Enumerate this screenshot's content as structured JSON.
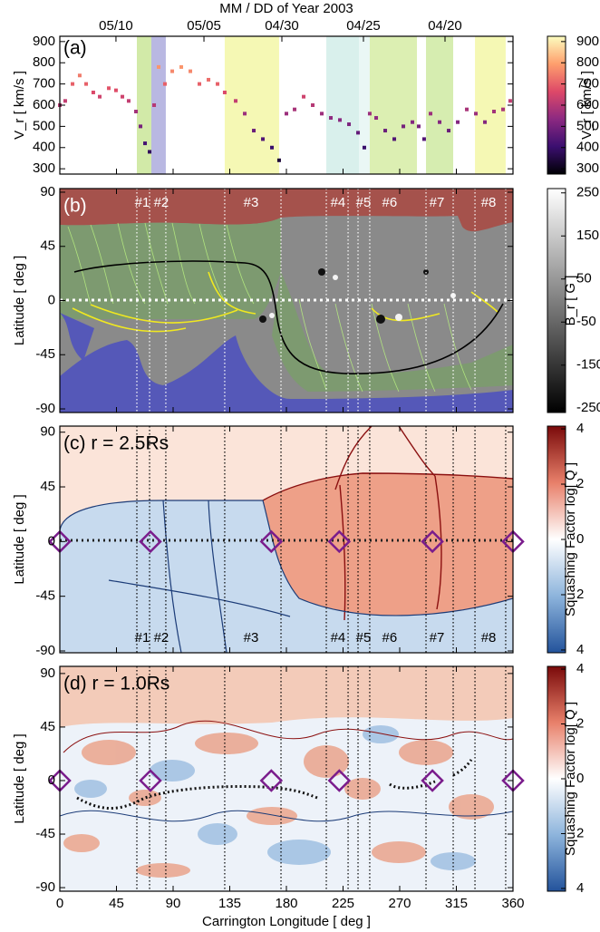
{
  "chart_data": [
    {
      "type": "scatter",
      "label": "(a)",
      "x2label": "MM / DD of Year 2003",
      "x2ticks": [
        {
          "value": 44.6,
          "label": "05/10"
        },
        {
          "value": 114.5,
          "label": "05/05"
        },
        {
          "value": 176.4,
          "label": "04/30"
        },
        {
          "value": 241.2,
          "label": "04/25"
        },
        {
          "value": 306,
          "label": "04/20"
        }
      ],
      "xlim": [
        0,
        360
      ],
      "ylim": [
        275,
        925
      ],
      "yticks": [
        300,
        400,
        500,
        600,
        700,
        800,
        900
      ],
      "ylabel": "V_r [ km/s ]",
      "bands": [
        {
          "xlim": [
            61.2,
            72.7
          ],
          "color": "#d2eaa8"
        },
        {
          "xlim": [
            72.7,
            84.2
          ],
          "color": "#b9b8e2"
        },
        {
          "xlim": [
            131,
            174.2
          ],
          "color": "#f5f8b4"
        },
        {
          "xlim": [
            211.7,
            237.6
          ],
          "color": "#d9f0ec"
        },
        {
          "xlim": [
            237.6,
            246.2
          ],
          "color": "#eaf7f5"
        },
        {
          "xlim": [
            246.2,
            283.7
          ],
          "color": "#dcefb2"
        },
        {
          "xlim": [
            290.9,
            312.5
          ],
          "color": "#d6edb0"
        },
        {
          "xlim": [
            329.8,
            354.2
          ],
          "color": "#f5f8b4"
        }
      ],
      "series": [
        {
          "x": [
            0,
            4.3,
            10.1,
            15.8,
            20.9,
            26.6,
            31.7,
            38.9,
            44.6,
            49.7,
            54.7,
            60.5,
            64.1,
            67.7,
            71.3,
            74.9,
            78.5,
            83.5,
            89.3,
            96.5,
            103.7,
            110.9,
            118.1,
            125.3,
            131,
            139.7,
            146.9,
            154.1,
            161.3,
            168.5,
            174.2,
            180,
            186.5,
            193.7,
            200.9,
            208.1,
            215.3,
            222.5,
            229.7,
            236.9,
            241.9,
            246.2,
            251.3,
            258.5,
            265.7,
            272.9,
            280.1,
            285.1,
            289.4,
            294.5,
            301.7,
            308.9,
            316.1,
            323.3,
            330.5,
            337.7,
            344.9,
            352.1,
            357.8
          ],
          "values": [
            600,
            620,
            700,
            740,
            700,
            660,
            640,
            680,
            670,
            640,
            620,
            570,
            500,
            420,
            380,
            600,
            780,
            700,
            760,
            780,
            760,
            700,
            720,
            700,
            660,
            620,
            560,
            480,
            440,
            400,
            340,
            560,
            580,
            640,
            600,
            560,
            540,
            530,
            510,
            470,
            400,
            560,
            540,
            480,
            440,
            500,
            520,
            500,
            440,
            560,
            520,
            480,
            520,
            580,
            560,
            520,
            570,
            580,
            620
          ]
        }
      ],
      "colorbar": {
        "label": "V_r [ km/s ]",
        "lim": [
          275,
          925
        ],
        "ticks": [
          300,
          400,
          500,
          600,
          700,
          800,
          900
        ],
        "colors": [
          "#000004",
          "#3b0f70",
          "#8c2981",
          "#de4968",
          "#fe9f6d",
          "#fcfdbf"
        ]
      }
    },
    {
      "type": "map",
      "label": "(b)",
      "ylabel": "Latitude [ deg ]",
      "xlim": [
        0,
        360
      ],
      "ylim": [
        -93,
        93
      ],
      "yticks": [
        -90,
        -45,
        0,
        45,
        90
      ],
      "event_lines": [
        61.2,
        71.3,
        84.2,
        131,
        175.7,
        211.7,
        229,
        236.9,
        246.2,
        290.9,
        312.5,
        329.8,
        354.2
      ],
      "event_line_color": "#ffffff",
      "events": {
        "labels": [
          "#1",
          "#2",
          "#3",
          "#4",
          "#5",
          "#6",
          "#7",
          "#8"
        ],
        "x": [
          65.5,
          80.6,
          151.9,
          221,
          241.2,
          262,
          299.5,
          340.6
        ]
      },
      "events_position": "top",
      "events_color": "#ffffff",
      "colorbar": {
        "label": "B_r [ G ]",
        "lim": [
          -260,
          260
        ],
        "ticks": [
          250,
          150,
          50,
          -50,
          -150,
          -250
        ],
        "colors": [
          "#000000",
          "#ffffff"
        ]
      }
    },
    {
      "type": "map",
      "label": "(c) r = 2.5Rs",
      "ylabel": "Latitude [ deg ]",
      "xlim": [
        0,
        360
      ],
      "ylim": [
        -91.5,
        95
      ],
      "yticks": [
        -90,
        -45,
        0,
        45,
        90
      ],
      "event_lines": [
        61.2,
        71.3,
        84.2,
        131,
        175.7,
        211.7,
        229,
        236.9,
        246.2,
        290.9,
        312.5,
        329.8,
        354.2
      ],
      "event_line_color": "#000000",
      "events": {
        "labels": [
          "#1",
          "#2",
          "#3",
          "#4",
          "#5",
          "#6",
          "#7",
          "#8"
        ],
        "x": [
          65.5,
          80.6,
          151.9,
          221,
          241.2,
          262,
          299.5,
          340.6
        ]
      },
      "events_position": "bottom",
      "events_color": "#000000",
      "markers": {
        "x": [
          0,
          72,
          168,
          222,
          296,
          360
        ],
        "y": [
          0,
          0,
          0,
          0,
          0,
          0
        ],
        "color": "#7a1c8c"
      },
      "colorbar": {
        "label": "Squashing Factor  log[ Q ]",
        "lim": [
          -4.1,
          4.1
        ],
        "ticks": [
          4,
          {
            "value": 2,
            "label": "2"
          },
          0,
          {
            "value": -2,
            "label": "2"
          },
          {
            "value": -4,
            "label": "4"
          }
        ],
        "colors": [
          "#23539b",
          "#8db4dc",
          "#ffffff",
          "#e8806a",
          "#7a0a0a"
        ]
      }
    },
    {
      "type": "map",
      "label": "(d) r = 1.0Rs",
      "ylabel": "Latitude [ deg ]",
      "xlim": [
        0,
        360
      ],
      "ylim": [
        -93,
        96
      ],
      "yticks": [
        -90,
        -45,
        0,
        45,
        90
      ],
      "xlabel": "Carrington Longitude  [ deg ]",
      "xticks": [
        0,
        45,
        90,
        135,
        180,
        225,
        270,
        315,
        360
      ],
      "event_lines": [
        61.2,
        71.3,
        84.2,
        131,
        175.7,
        211.7,
        229,
        236.9,
        246.2,
        290.9,
        312.5,
        329.8,
        354.2
      ],
      "event_line_color": "#000000",
      "markers": {
        "x": [
          0,
          72,
          168,
          222,
          296,
          360
        ],
        "y": [
          0,
          0,
          0,
          0,
          0,
          0
        ],
        "color": "#7a1c8c"
      },
      "colorbar": {
        "label": "Squashing Factor  log[ Q ]",
        "lim": [
          -4.1,
          4.1
        ],
        "ticks": [
          4,
          {
            "value": 2,
            "label": "2"
          },
          0,
          {
            "value": -2,
            "label": "2"
          },
          {
            "value": -4,
            "label": "4"
          }
        ],
        "colors": [
          "#23539b",
          "#8db4dc",
          "#ffffff",
          "#e8806a",
          "#7a0a0a"
        ]
      }
    }
  ]
}
